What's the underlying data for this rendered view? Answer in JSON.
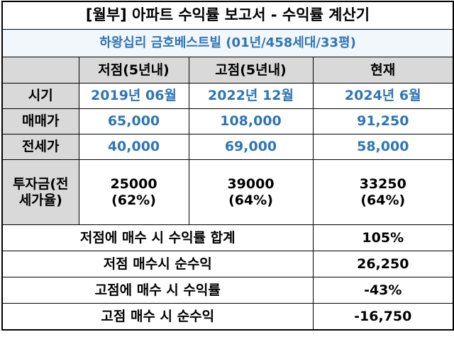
{
  "header": {
    "title": "[월부] 아파트 수익률 보고서 - 수익률 계산기",
    "subtitle": "하왕십리 금호베스트빌 (01년/458세대/33평)"
  },
  "table": {
    "columns": [
      "저점(5년내)",
      "고점(5년내)",
      "현재"
    ],
    "rows": [
      {
        "label": "시기",
        "values": [
          "2019년 06월",
          "2022년 12월",
          "2024년 6월"
        ]
      },
      {
        "label": "매매가",
        "values": [
          "65,000",
          "108,000",
          "91,250"
        ]
      },
      {
        "label": "전세가",
        "values": [
          "40,000",
          "69,000",
          "58,000"
        ]
      }
    ],
    "investment": {
      "label": "투자금(전세가율)",
      "values": [
        {
          "amount": "25000",
          "ratio": "(62%)"
        },
        {
          "amount": "39000",
          "ratio": "(64%)"
        },
        {
          "amount": "33250",
          "ratio": "(64%)"
        }
      ]
    },
    "summary": [
      {
        "label": "저점에 매수 시 수익률 합계",
        "value": "105%"
      },
      {
        "label": "저점 매수시 순수익",
        "value": "26,250"
      },
      {
        "label": "고점에 매수 시 수익률",
        "value": "-43%"
      },
      {
        "label": "고점 매수 시 순수익",
        "value": "-16,750"
      }
    ]
  }
}
